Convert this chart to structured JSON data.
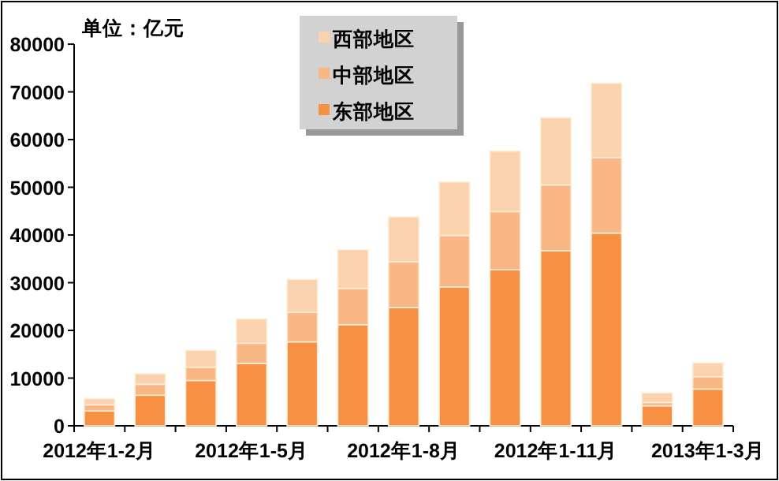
{
  "chart_data": {
    "type": "bar",
    "stacked": true,
    "ylabel": "单位：亿元",
    "legend": "top",
    "categories": [
      "2012年1-2月",
      null,
      null,
      "2012年1-5月",
      null,
      null,
      "2012年1-8月",
      null,
      null,
      "2012年1-11月",
      null,
      null,
      "2013年1-3月"
    ],
    "ylim": [
      0,
      80000
    ],
    "yticks": [
      0,
      10000,
      20000,
      30000,
      40000,
      50000,
      60000,
      70000,
      80000
    ],
    "series": [
      {
        "name": "东部地区",
        "color": "#f79043",
        "values": [
          3100,
          6400,
          9500,
          13100,
          17600,
          21200,
          24800,
          29100,
          32700,
          36700,
          40400,
          4200,
          7700
        ]
      },
      {
        "name": "中部地区",
        "color": "#f8b785",
        "values": [
          1300,
          2300,
          2800,
          4200,
          6200,
          7600,
          9600,
          10800,
          12200,
          13800,
          15800,
          700,
          2600
        ]
      },
      {
        "name": "西部地区",
        "color": "#fad2ae",
        "values": [
          1300,
          2200,
          3500,
          5100,
          6900,
          8100,
          9400,
          11200,
          12700,
          14100,
          15600,
          2000,
          2900
        ]
      }
    ]
  }
}
